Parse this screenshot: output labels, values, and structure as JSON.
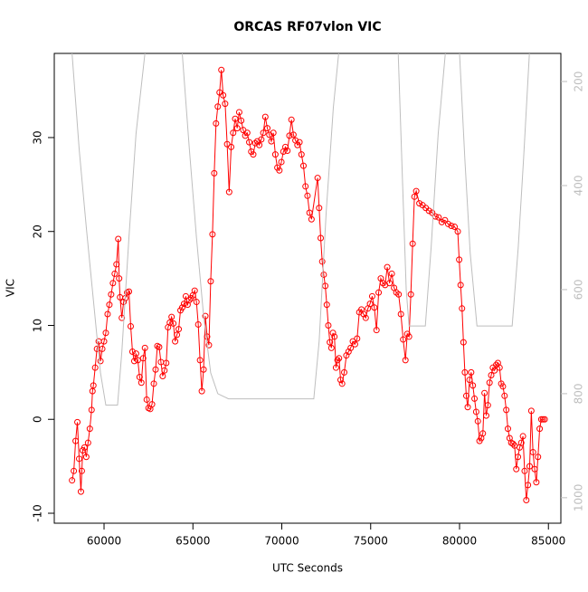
{
  "chart_data": {
    "type": "line",
    "title": "ORCAS RF07vlon VIC",
    "xlabel": "UTC Seconds",
    "ylabel": "VIC",
    "xlim": [
      57200,
      85700
    ],
    "xticks": [
      60000,
      65000,
      70000,
      75000,
      80000,
      85000
    ],
    "ylim": [
      -11.06,
      38.96
    ],
    "yticks": [
      -10,
      0,
      10,
      20,
      30
    ],
    "y2lim": [
      1049,
      146
    ],
    "y2ticks": [
      200,
      400,
      600,
      800,
      1000
    ],
    "series": [
      {
        "color": "#ff0000",
        "x": [
          58200,
          58300,
          58400,
          58500,
          58600,
          58700,
          58750,
          58800,
          58900,
          59000,
          59100,
          59200,
          59300,
          59350,
          59400,
          59500,
          59600,
          59700,
          59800,
          59900,
          60000,
          60100,
          60200,
          60300,
          60400,
          60500,
          60600,
          60700,
          60800,
          60850,
          60900,
          61000,
          61100,
          61200,
          61300,
          61400,
          61500,
          61600,
          61700,
          61800,
          61900,
          62000,
          62100,
          62200,
          62300,
          62400,
          62500,
          62600,
          62700,
          62800,
          62900,
          63000,
          63100,
          63200,
          63300,
          63400,
          63500,
          63600,
          63700,
          63800,
          63900,
          64000,
          64100,
          64200,
          64300,
          64400,
          64500,
          64600,
          64700,
          64800,
          64900,
          65000,
          65100,
          65200,
          65300,
          65400,
          65500,
          65600,
          65700,
          65800,
          65900,
          66000,
          66100,
          66200,
          66300,
          66400,
          66500,
          66600,
          66700,
          66813,
          66926,
          67039,
          67152,
          67265,
          67378,
          67491,
          67604,
          67717,
          67830,
          67943,
          68056,
          68169,
          68282,
          68395,
          68508,
          68621,
          68734,
          68847,
          68960,
          69073,
          69186,
          69299,
          69412,
          69525,
          69638,
          69751,
          69864,
          69977,
          70090,
          70203,
          70316,
          70429,
          70542,
          70655,
          70768,
          70881,
          70994,
          71107,
          71220,
          71333,
          71446,
          71559,
          71672,
          72016,
          72102,
          72188,
          72274,
          72360,
          72446,
          72532,
          72618,
          72704,
          72790,
          72876,
          72962,
          73048,
          73134,
          73220,
          73306,
          73392,
          73513,
          73634,
          73755,
          73876,
          73997,
          74118,
          74239,
          74360,
          74481,
          74602,
          74723,
          74844,
          74965,
          75086,
          75207,
          75328,
          75449,
          75570,
          75691,
          75812,
          75933,
          76061,
          76189,
          76317,
          76445,
          76573,
          76701,
          76829,
          76957,
          77058,
          77159,
          77260,
          77361,
          77462,
          77563,
          77740,
          77920,
          78100,
          78280,
          78460,
          78640,
          78820,
          79000,
          79180,
          79360,
          79540,
          79720,
          79900,
          79980,
          80060,
          80140,
          80220,
          80300,
          80380,
          80460,
          80560,
          80654,
          80748,
          80842,
          80936,
          81030,
          81124,
          81218,
          81312,
          81406,
          81500,
          81594,
          81688,
          81782,
          81876,
          81970,
          82064,
          82158,
          82252,
          82346,
          82440,
          82534,
          82628,
          82722,
          82816,
          82910,
          83004,
          83098,
          83192,
          83286,
          83380,
          83474,
          83568,
          83662,
          83756,
          83850,
          83944,
          84038,
          84132,
          84226,
          84320,
          84414,
          84508,
          84602,
          84696,
          84790
        ],
        "values": [
          -6.5,
          -5.5,
          -2.3,
          -0.3,
          -4.2,
          -7.7,
          -5.5,
          -3.3,
          -3.0,
          -4.0,
          -2.5,
          -1.0,
          1.0,
          3.0,
          3.6,
          5.5,
          7.5,
          8.3,
          6.2,
          7.5,
          8.3,
          9.2,
          11.2,
          12.2,
          13.3,
          14.5,
          15.5,
          16.5,
          19.2,
          15.0,
          13.0,
          10.8,
          12.5,
          12.9,
          13.5,
          13.6,
          9.9,
          7.2,
          6.2,
          7.0,
          6.3,
          4.5,
          3.9,
          6.5,
          7.6,
          2.1,
          1.2,
          1.1,
          1.6,
          3.8,
          5.3,
          7.8,
          7.7,
          6.1,
          4.6,
          5.2,
          6.0,
          9.8,
          10.3,
          10.9,
          10.2,
          8.3,
          9.0,
          9.6,
          11.6,
          11.9,
          12.3,
          13.1,
          12.2,
          12.7,
          12.9,
          13.2,
          13.7,
          12.5,
          10.1,
          6.3,
          3.0,
          5.3,
          11.0,
          8.8,
          7.9,
          14.7,
          19.7,
          26.2,
          31.5,
          33.3,
          34.8,
          37.2,
          34.5,
          33.6,
          29.3,
          24.2,
          29.0,
          30.5,
          32.0,
          31.0,
          32.7,
          31.8,
          30.8,
          30.2,
          30.5,
          29.5,
          28.5,
          28.2,
          29.4,
          29.6,
          29.2,
          29.8,
          30.5,
          32.2,
          31.0,
          30.3,
          29.6,
          30.5,
          28.2,
          26.8,
          26.5,
          27.4,
          28.5,
          29.0,
          28.6,
          30.2,
          31.9,
          30.3,
          29.7,
          29.2,
          29.5,
          28.2,
          27.0,
          24.8,
          23.8,
          22.0,
          21.3,
          25.7,
          22.5,
          19.3,
          16.8,
          15.4,
          14.2,
          12.2,
          10.0,
          8.2,
          7.6,
          9.2,
          8.8,
          5.5,
          6.3,
          6.5,
          4.2,
          3.8,
          5.0,
          6.8,
          7.2,
          7.6,
          8.3,
          8.0,
          8.6,
          11.4,
          11.7,
          11.2,
          10.8,
          11.8,
          12.3,
          13.1,
          11.9,
          9.5,
          13.5,
          15.0,
          14.5,
          14.3,
          16.2,
          14.5,
          15.5,
          14.0,
          13.5,
          13.3,
          11.2,
          8.5,
          6.3,
          9.1,
          8.8,
          13.3,
          18.7,
          23.7,
          24.3,
          23.0,
          22.8,
          22.5,
          22.2,
          22.0,
          21.6,
          21.5,
          21.0,
          21.2,
          20.8,
          20.6,
          20.5,
          20.0,
          17.0,
          14.3,
          11.8,
          8.2,
          5.0,
          2.5,
          1.3,
          4.2,
          5.0,
          3.6,
          2.2,
          0.8,
          -0.2,
          -2.3,
          -2.0,
          -1.5,
          2.8,
          0.4,
          1.5,
          3.9,
          4.7,
          5.5,
          5.2,
          5.8,
          6.0,
          5.5,
          3.8,
          3.5,
          2.5,
          1.0,
          -1.0,
          -2.0,
          -2.5,
          -2.6,
          -2.8,
          -5.3,
          -4.0,
          -3.0,
          -2.5,
          -1.8,
          -5.5,
          -8.6,
          -7.0,
          -5.0,
          0.9,
          -3.5,
          -5.3,
          -6.7,
          -4.0,
          -1.0,
          0.0,
          0.0,
          0.0
        ]
      },
      {
        "color": "#bebebe",
        "axis": "y2",
        "x": [
          58200,
          58600,
          59000,
          59400,
          59800,
          60100,
          60760,
          61000,
          61400,
          61800,
          62300,
          63000,
          64400,
          64800,
          65200,
          65600,
          66000,
          66400,
          67000,
          71800,
          72100,
          72500,
          72900,
          73200,
          74500,
          76550,
          76800,
          77000,
          77160,
          78075,
          78400,
          78800,
          79200,
          79600,
          80000,
          80300,
          80600,
          80980,
          82960,
          83300,
          83600,
          83930
        ],
        "values": [
          146,
          330,
          480,
          620,
          760,
          822,
          822,
          720,
          500,
          300,
          146,
          null,
          146,
          330,
          500,
          650,
          760,
          800,
          810,
          810,
          700,
          450,
          250,
          146,
          null,
          146,
          400,
          600,
          670,
          670,
          520,
          300,
          146,
          null,
          146,
          350,
          530,
          670,
          670,
          520,
          350,
          146
        ]
      }
    ]
  }
}
